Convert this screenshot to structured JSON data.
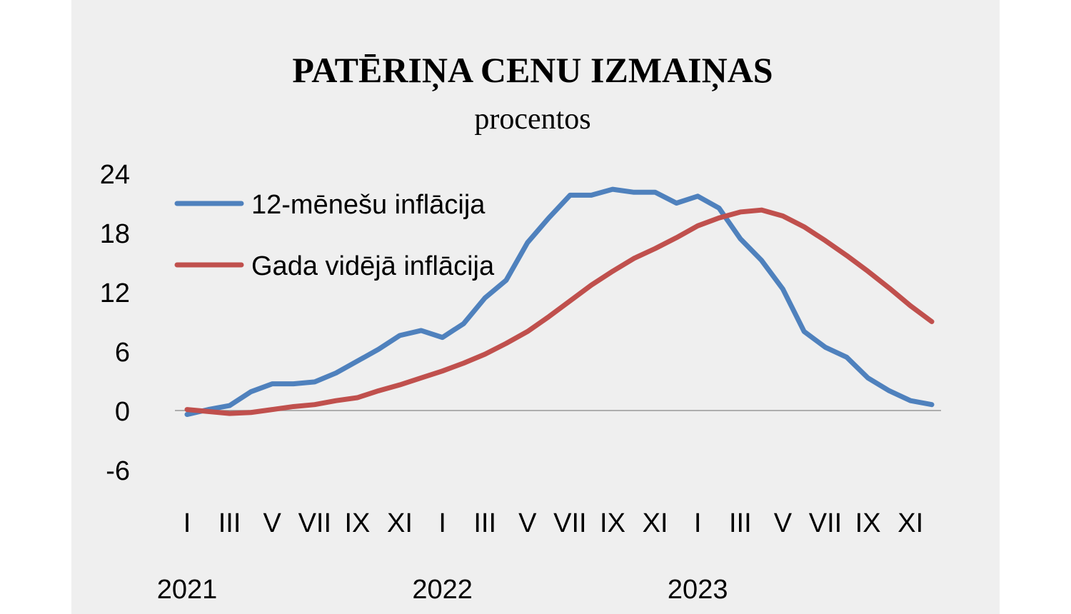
{
  "chart_data": {
    "type": "line",
    "title": "PATĒRIŅA CENU IZMAIŅAS",
    "subtitle": "procentos",
    "categories": [
      "I",
      null,
      "III",
      null,
      "V",
      null,
      "VII",
      null,
      "IX",
      null,
      "XI",
      null,
      "I",
      null,
      "III",
      null,
      "V",
      null,
      "VII",
      null,
      "IX",
      null,
      "XI",
      null,
      "I",
      null,
      "III",
      null,
      "V",
      null,
      "VII",
      null,
      "IX",
      null,
      "XI",
      null
    ],
    "year_labels": [
      "2021",
      "2022",
      "2023"
    ],
    "series": [
      {
        "name": "12-mēnešu inflācija",
        "color": "#4f81bd",
        "values": [
          -0.4,
          0.1,
          0.5,
          1.9,
          2.7,
          2.7,
          2.9,
          3.8,
          5.0,
          6.2,
          7.6,
          8.1,
          7.4,
          8.8,
          11.4,
          13.2,
          17.0,
          19.5,
          21.8,
          21.8,
          22.4,
          22.1,
          22.1,
          21.0,
          21.7,
          20.5,
          17.4,
          15.2,
          12.3,
          8.0,
          6.4,
          5.4,
          3.3,
          2.0,
          1.0,
          0.6
        ]
      },
      {
        "name": "Gada vidējā inflācija",
        "color": "#c0504d",
        "values": [
          0.1,
          -0.1,
          -0.3,
          -0.2,
          0.1,
          0.4,
          0.6,
          1.0,
          1.3,
          2.0,
          2.6,
          3.3,
          4.0,
          4.8,
          5.7,
          6.8,
          8.0,
          9.5,
          11.1,
          12.7,
          14.1,
          15.4,
          16.4,
          17.5,
          18.7,
          19.5,
          20.1,
          20.3,
          19.7,
          18.6,
          17.2,
          15.7,
          14.1,
          12.4,
          10.6,
          9.0
        ]
      }
    ],
    "ylim": [
      -6,
      24
    ],
    "yticks": [
      -6,
      0,
      6,
      12,
      18,
      24
    ]
  }
}
